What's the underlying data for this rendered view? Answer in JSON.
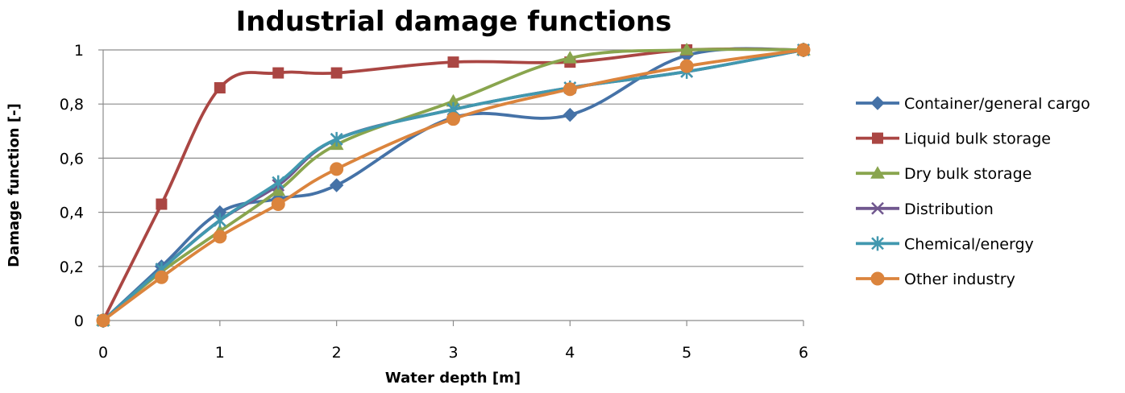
{
  "chart_data": {
    "type": "line",
    "title": "Industrial damage functions",
    "xlabel": "Water depth [m]",
    "ylabel": "Damage function [-]",
    "xlim": [
      0,
      6
    ],
    "ylim": [
      0,
      1
    ],
    "x_ticks": [
      "0",
      "1",
      "2",
      "3",
      "4",
      "5",
      "6"
    ],
    "y_ticks": [
      "0",
      "0,2",
      "0,4",
      "0,6",
      "0,8",
      "1"
    ],
    "grid": "horizontal",
    "legend_position": "right",
    "series": [
      {
        "name": "Container/general cargo",
        "color": "#4572a7",
        "marker": "diamond",
        "x": [
          0,
          0.5,
          1,
          1.5,
          2,
          3,
          4,
          5,
          6
        ],
        "y": [
          0,
          0.2,
          0.4,
          0.45,
          0.5,
          0.75,
          0.76,
          0.98,
          1
        ]
      },
      {
        "name": "Liquid bulk storage",
        "color": "#aa4643",
        "marker": "square",
        "x": [
          0,
          0.5,
          1,
          1.5,
          2,
          3,
          4,
          5,
          6
        ],
        "y": [
          0,
          0.43,
          0.86,
          0.915,
          0.915,
          0.955,
          0.955,
          1,
          1
        ]
      },
      {
        "name": "Dry bulk storage",
        "color": "#89a54e",
        "marker": "triangle",
        "x": [
          0,
          0.5,
          1,
          1.5,
          2,
          3,
          4,
          5,
          6
        ],
        "y": [
          0,
          0.18,
          0.33,
          0.48,
          0.65,
          0.81,
          0.97,
          1,
          1
        ]
      },
      {
        "name": "Distribution",
        "color": "#71588f",
        "marker": "x",
        "x": [
          0,
          0.5,
          1,
          1.5,
          2,
          3,
          4,
          5,
          6
        ],
        "y": [
          0,
          0.19,
          0.37,
          0.5,
          0.67,
          0.78,
          0.86,
          0.92,
          1
        ]
      },
      {
        "name": "Chemical/energy",
        "color": "#4198af",
        "marker": "asterisk",
        "x": [
          0,
          0.5,
          1,
          1.5,
          2,
          3,
          4,
          5,
          6
        ],
        "y": [
          0,
          0.19,
          0.37,
          0.51,
          0.67,
          0.78,
          0.86,
          0.92,
          1
        ]
      },
      {
        "name": "Other industry",
        "color": "#db843d",
        "marker": "circle",
        "x": [
          0,
          0.5,
          1,
          1.5,
          2,
          3,
          4,
          5,
          6
        ],
        "y": [
          0,
          0.16,
          0.31,
          0.43,
          0.56,
          0.745,
          0.855,
          0.94,
          1
        ]
      }
    ]
  }
}
